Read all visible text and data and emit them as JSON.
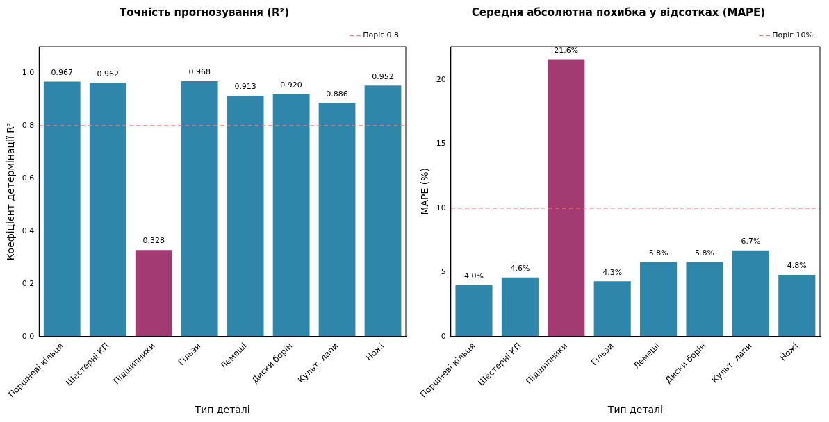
{
  "chart_data": [
    {
      "type": "bar",
      "title": "Точність прогнозування (R²)",
      "xlabel": "Тип деталі",
      "ylabel": "Коефіцієнт детермінації R²",
      "categories": [
        "Поршневі кільця",
        "Шестерні КП",
        "Підшипники",
        "Гільзи",
        "Лемеші",
        "Диски борін",
        "Культ. лапи",
        "Ножі"
      ],
      "values": [
        0.967,
        0.962,
        0.328,
        0.968,
        0.913,
        0.92,
        0.886,
        0.952
      ],
      "value_labels": [
        "0.967",
        "0.962",
        "0.328",
        "0.968",
        "0.913",
        "0.920",
        "0.886",
        "0.952"
      ],
      "colors": [
        "#2e86ab",
        "#2e86ab",
        "#a23b72",
        "#2e86ab",
        "#2e86ab",
        "#2e86ab",
        "#2e86ab",
        "#2e86ab"
      ],
      "ylim": [
        0,
        1.1
      ],
      "yticks": [
        {
          "value": 0,
          "label": "0.0"
        },
        {
          "value": 0.2,
          "label": "0.2"
        },
        {
          "value": 0.4,
          "label": "0.4"
        },
        {
          "value": 0.6,
          "label": "0.6"
        },
        {
          "value": 0.8,
          "label": "0.8"
        },
        {
          "value": 1,
          "label": "1.0"
        }
      ],
      "ref_lines": [
        {
          "axis": "y",
          "value": 0.8,
          "label": "Поріг 0.8",
          "color": "#f47a7a",
          "line_style": "dashed"
        }
      ],
      "legend": "top right",
      "grid": false
    },
    {
      "type": "bar",
      "title": "Середня абсолютна похибка у відсотках (MAPE)",
      "xlabel": "Тип деталі",
      "ylabel": "MAPE (%)",
      "categories": [
        "Поршневі кільця",
        "Шестерні КП",
        "Підшипники",
        "Гільзи",
        "Лемеші",
        "Диски борін",
        "Культ. лапи",
        "Ножі"
      ],
      "values": [
        4.0,
        4.6,
        21.6,
        4.3,
        5.8,
        5.8,
        6.7,
        4.8
      ],
      "value_labels": [
        "4.0%",
        "4.6%",
        "21.6%",
        "4.3%",
        "5.8%",
        "5.8%",
        "6.7%",
        "4.8%"
      ],
      "colors": [
        "#2e86ab",
        "#2e86ab",
        "#a23b72",
        "#2e86ab",
        "#2e86ab",
        "#2e86ab",
        "#2e86ab",
        "#2e86ab"
      ],
      "ylim": [
        0,
        22.6
      ],
      "yticks": [
        0,
        5,
        10,
        15,
        20
      ],
      "ref_lines": [
        {
          "axis": "y",
          "value": 10,
          "label": "Поріг 10%",
          "color": "#f47a7a",
          "line_style": "dashed"
        }
      ],
      "legend": "top right",
      "grid": false
    }
  ]
}
